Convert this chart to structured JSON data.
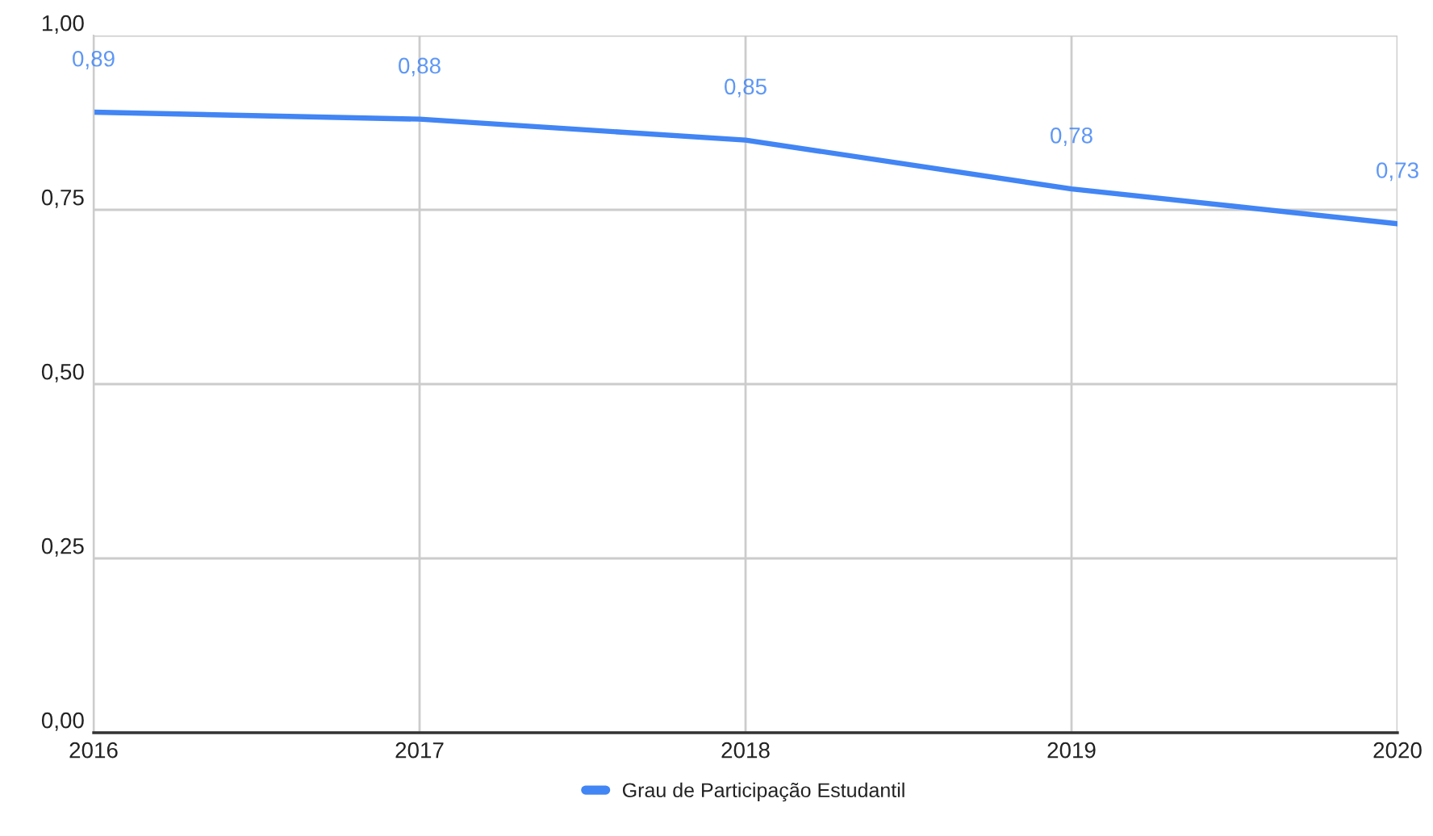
{
  "chart_data": {
    "type": "line",
    "x": [
      2016,
      2017,
      2018,
      2019,
      2020
    ],
    "series": [
      {
        "name": "Grau de Participação Estudantil",
        "color": "#4285f4",
        "values": [
          0.89,
          0.88,
          0.85,
          0.78,
          0.73
        ],
        "value_labels": [
          "0,89",
          "0,88",
          "0,85",
          "0,78",
          "0,73"
        ]
      }
    ],
    "xlim": [
      2016,
      2020
    ],
    "xticks": [
      2016,
      2017,
      2018,
      2019,
      2020
    ],
    "ylim": [
      0,
      1
    ],
    "yticks": [
      {
        "value": 0,
        "label": "0,00"
      },
      {
        "value": 0.25,
        "label": "0,25"
      },
      {
        "value": 0.5,
        "label": "0,50"
      },
      {
        "value": 0.75,
        "label": "0,75"
      },
      {
        "value": 1,
        "label": "1,00"
      }
    ],
    "grid": true,
    "legend": "bottom",
    "line_style": "solid"
  }
}
